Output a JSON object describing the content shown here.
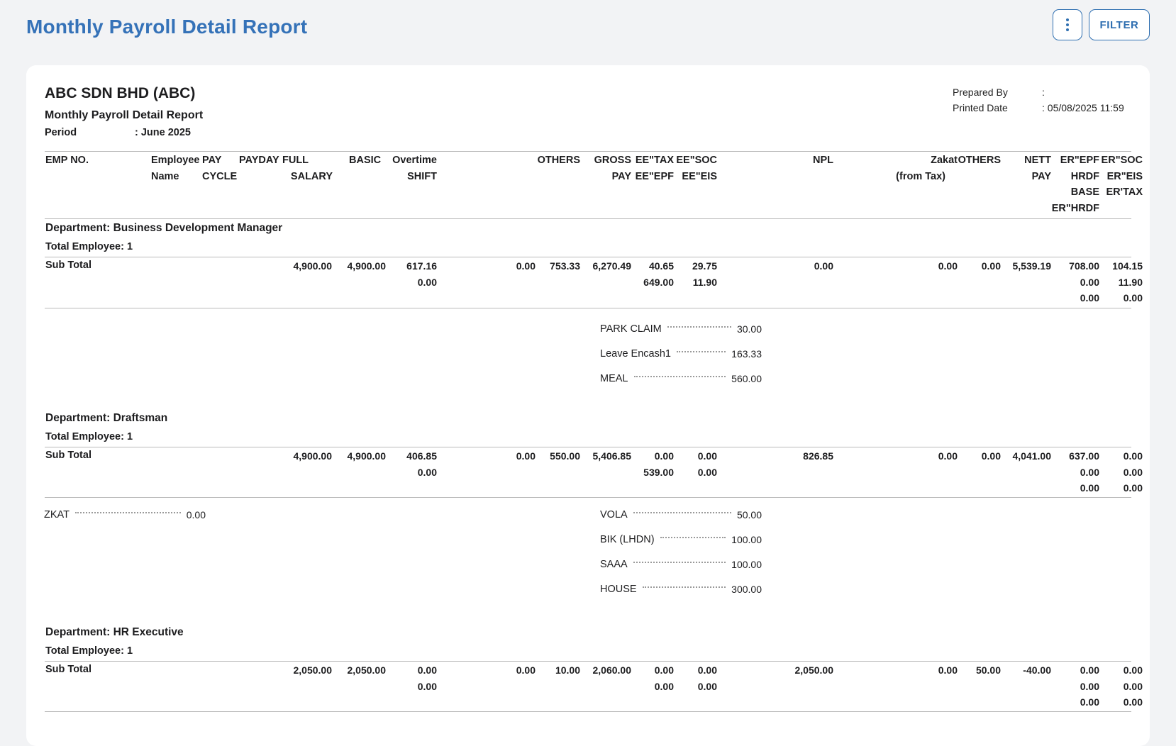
{
  "page": {
    "title": "Monthly Payroll Detail Report",
    "more_icon": "more-vertical-icon",
    "filter_label": "FILTER"
  },
  "report": {
    "company": "ABC SDN BHD (ABC)",
    "subtitle": "Monthly Payroll Detail Report",
    "period_label": "Period",
    "period_value": ": June 2025",
    "prepared_by_label": "Prepared By",
    "prepared_by_value": ":",
    "printed_date_label": "Printed Date",
    "printed_date_value": ": 05/08/2025 11:59"
  },
  "columns": {
    "emp_no": "EMP NO.",
    "employee": "Employee",
    "name": "Name",
    "pay": "PAY",
    "cycle": "CYCLE",
    "payday": "PAYDAY",
    "full": "FULL",
    "salary": "SALARY",
    "basic": "BASIC",
    "overtime": "Overtime",
    "shift": "SHIFT",
    "others": "OTHERS",
    "gross": "GROSS",
    "gross_pay": "PAY",
    "ee_tax": "EE\"TAX",
    "ee_epf": "EE\"EPF",
    "ee_soc": "EE\"SOC",
    "ee_eis": "EE\"EIS",
    "npl": "NPL",
    "zakat": "Zakat",
    "from_tax": "(from Tax)",
    "others2": "OTHERS",
    "nett": "NETT",
    "nett_pay": "PAY",
    "er_epf": "ER\"EPF",
    "hrdf": "HRDF",
    "base": "BASE",
    "er_hrdf": "ER\"HRDF",
    "er_soc": "ER\"SOC",
    "er_eis": "ER\"EIS",
    "er_tax": "ER'TAX"
  },
  "departments": [
    {
      "name": "Department: Business Development Manager",
      "total": "Total Employee: 1",
      "subtotal_label": "Sub Total",
      "basic": "4,900.00",
      "full_salary": "4,900.00",
      "overtime": "617.16",
      "shift": "0.00",
      "others_a": "0.00",
      "others_b": "753.33",
      "gross": "6,270.49",
      "ee_tax": "40.65",
      "ee_epf": "649.00",
      "ee_soc": "29.75",
      "ee_eis": "11.90",
      "npl": "0.00",
      "zakat": "0.00",
      "others2": "0.00",
      "nett": "5,539.19",
      "er_epf": "708.00",
      "hrdf": "0.00",
      "base": "0.00",
      "er_soc": "104.15",
      "er_eis": "11.90",
      "er_tax": "0.00",
      "deductions": [],
      "allowances": [
        {
          "label": "PARK CLAIM",
          "value": "30.00"
        },
        {
          "label": "Leave Encash1",
          "value": "163.33"
        },
        {
          "label": "MEAL",
          "value": "560.00"
        }
      ]
    },
    {
      "name": "Department: Draftsman",
      "total": "Total Employee: 1",
      "subtotal_label": "Sub Total",
      "basic": "4,900.00",
      "full_salary": "4,900.00",
      "overtime": "406.85",
      "shift": "0.00",
      "others_a": "0.00",
      "others_b": "550.00",
      "gross": "5,406.85",
      "ee_tax": "0.00",
      "ee_epf": "539.00",
      "ee_soc": "0.00",
      "ee_eis": "0.00",
      "npl": "826.85",
      "zakat": "0.00",
      "others2": "0.00",
      "nett": "4,041.00",
      "er_epf": "637.00",
      "hrdf": "0.00",
      "base": "0.00",
      "er_soc": "0.00",
      "er_eis": "0.00",
      "er_tax": "0.00",
      "deductions": [
        {
          "label": "ZKAT",
          "value": "0.00"
        }
      ],
      "allowances": [
        {
          "label": "VOLA",
          "value": "50.00"
        },
        {
          "label": "BIK (LHDN)",
          "value": "100.00"
        },
        {
          "label": "SAAA",
          "value": "100.00"
        },
        {
          "label": "HOUSE",
          "value": "300.00"
        }
      ]
    },
    {
      "name": "Department: HR Executive",
      "total": "Total Employee: 1",
      "subtotal_label": "Sub Total",
      "basic": "2,050.00",
      "full_salary": "2,050.00",
      "overtime": "0.00",
      "shift": "0.00",
      "others_a": "0.00",
      "others_b": "10.00",
      "gross": "2,060.00",
      "ee_tax": "0.00",
      "ee_epf": "0.00",
      "ee_soc": "0.00",
      "ee_eis": "0.00",
      "npl": "2,050.00",
      "zakat": "0.00",
      "others2": "50.00",
      "nett": "-40.00",
      "er_epf": "0.00",
      "hrdf": "0.00",
      "base": "0.00",
      "er_soc": "0.00",
      "er_eis": "0.00",
      "er_tax": "0.00",
      "deductions": [],
      "allowances": []
    }
  ]
}
